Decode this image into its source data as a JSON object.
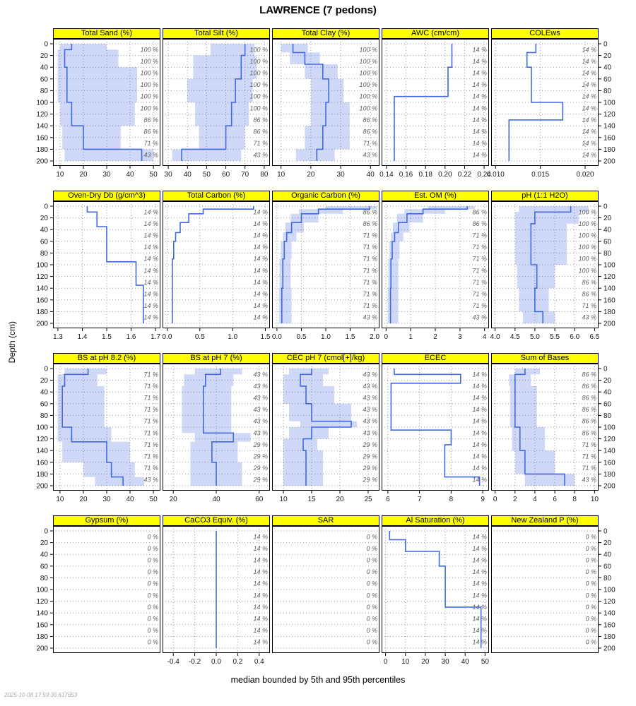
{
  "title": "LAWRENCE (7 pedons)",
  "ylabel": "Depth (cm)",
  "caption": "median bounded by 5th and 95th percentiles",
  "timestamp": "2025-10-08 17:59:30.617653",
  "colors": {
    "strip_bg": "#ffff00",
    "strip_border": "#000000",
    "median_line": "#4169e1",
    "band_fill": "rgba(65,105,225,0.25)",
    "grid": "#9a9a9a",
    "panel_border": "#000000",
    "fraction_text": "#5e5e5e",
    "axis_text": "#1a1a1a",
    "timestamp_text": "#a8a8a8"
  },
  "chart_data": {
    "type": "line",
    "chart_kind": "soil depth-profile lattice; median step line bounded by 5th and 95th percentile band; right-edge labels are contributing fraction of pedons per 20 cm slab",
    "layout": {
      "rows": 4,
      "cols": 5
    },
    "depth_axis": {
      "label": "Depth (cm)",
      "min": 0,
      "max": 200,
      "ticks": [
        0,
        20,
        40,
        60,
        80,
        100,
        120,
        140,
        160,
        180,
        200
      ]
    },
    "fraction_depths": [
      10,
      30,
      50,
      70,
      90,
      110,
      130,
      150,
      170,
      190
    ],
    "panels": [
      {
        "id": "total-sand",
        "title": "Total Sand (%)",
        "xlim": [
          7,
          53
        ],
        "xticks": [
          "10",
          "20",
          "30",
          "40",
          "50"
        ],
        "xtick_values": [
          10,
          20,
          30,
          40,
          50
        ],
        "depths": [
          0,
          10,
          40,
          100,
          140,
          180,
          200
        ],
        "median": [
          15,
          12,
          13,
          15,
          20,
          45
        ],
        "low": [
          10,
          9,
          9,
          10,
          11,
          12
        ],
        "high": [
          30,
          35,
          43,
          42,
          36,
          50
        ],
        "fractions": [
          100,
          100,
          100,
          100,
          100,
          100,
          86,
          86,
          71,
          43
        ]
      },
      {
        "id": "total-silt",
        "title": "Total Silt (%)",
        "xlim": [
          27,
          83
        ],
        "xticks": [
          "30",
          "40",
          "50",
          "60",
          "70",
          "80"
        ],
        "xtick_values": [
          30,
          40,
          50,
          60,
          70,
          80
        ],
        "depths": [
          0,
          20,
          60,
          100,
          140,
          180,
          200
        ],
        "median": [
          70,
          68,
          65,
          63,
          60,
          37
        ],
        "low": [
          52,
          43,
          40,
          44,
          46,
          32
        ],
        "high": [
          75,
          76,
          74,
          72,
          70,
          68
        ],
        "fractions": [
          100,
          100,
          100,
          100,
          100,
          100,
          86,
          86,
          71,
          43
        ]
      },
      {
        "id": "total-clay",
        "title": "Total Clay (%)",
        "xlim": [
          7,
          43
        ],
        "xticks": [
          "10",
          "20",
          "30",
          "40"
        ],
        "xtick_values": [
          10,
          20,
          30,
          40
        ],
        "depths": [
          0,
          15,
          35,
          60,
          100,
          140,
          180,
          200
        ],
        "median": [
          14,
          18,
          24,
          26,
          25,
          24,
          22
        ],
        "low": [
          10,
          13,
          18,
          20,
          20,
          18,
          15
        ],
        "high": [
          19,
          23,
          29,
          31,
          33,
          33,
          28
        ],
        "fractions": [
          100,
          100,
          100,
          100,
          100,
          100,
          86,
          86,
          71,
          43
        ]
      },
      {
        "id": "awc",
        "title": "AWC (cm/cm)",
        "xlim": [
          0.135,
          0.245
        ],
        "xticks": [
          "0.14",
          "0.16",
          "0.18",
          "0.20",
          "0.22",
          "0.24"
        ],
        "xtick_values": [
          0.14,
          0.16,
          0.18,
          0.2,
          0.22,
          0.24
        ],
        "depths": [
          0,
          40,
          90,
          200
        ],
        "median": [
          0.207,
          0.203,
          0.148
        ],
        "low": [],
        "high": [],
        "fractions": [
          14,
          14,
          14,
          14,
          14,
          14,
          14,
          14,
          14,
          14
        ]
      },
      {
        "id": "colews",
        "title": "COLEws",
        "xlim": [
          0.0095,
          0.0215
        ],
        "xticks": [
          "0.010",
          "0.015",
          "0.020"
        ],
        "xtick_values": [
          0.01,
          0.015,
          0.02
        ],
        "depths": [
          0,
          15,
          40,
          100,
          130,
          200
        ],
        "median": [
          0.0145,
          0.0135,
          0.014,
          0.0175,
          0.0115
        ],
        "low": [],
        "high": [],
        "fractions": [
          14,
          14,
          14,
          14,
          14,
          14,
          14,
          14,
          14,
          14
        ]
      },
      {
        "id": "oven-dry-db",
        "title": "Oven-Dry Db (g/cm^3)",
        "xlim": [
          1.28,
          1.72
        ],
        "xticks": [
          "1.3",
          "1.4",
          "1.5",
          "1.6",
          "1.7"
        ],
        "xtick_values": [
          1.3,
          1.4,
          1.5,
          1.6,
          1.7
        ],
        "depths": [
          0,
          10,
          35,
          95,
          135,
          200
        ],
        "median": [
          1.42,
          1.46,
          1.5,
          1.62,
          1.65
        ],
        "low": [],
        "high": [],
        "fractions": [
          14,
          14,
          14,
          14,
          14,
          14,
          14,
          14,
          14,
          14
        ]
      },
      {
        "id": "total-carbon",
        "title": "Total Carbon (%)",
        "xlim": [
          -0.07,
          1.57
        ],
        "xticks": [
          "0.0",
          "0.5",
          "1.0",
          "1.5"
        ],
        "xtick_values": [
          0,
          0.5,
          1,
          1.5
        ],
        "depths": [
          0,
          5,
          13,
          28,
          45,
          60,
          90,
          200
        ],
        "median": [
          1.32,
          0.55,
          0.33,
          0.2,
          0.13,
          0.1,
          0.08
        ],
        "low": [],
        "high": [],
        "fractions": [
          14,
          14,
          14,
          14,
          14,
          14,
          14,
          14,
          14,
          14
        ]
      },
      {
        "id": "organic-carbon",
        "title": "Organic Carbon (%)",
        "xlim": [
          -0.1,
          2.1
        ],
        "xticks": [
          "0.0",
          "0.5",
          "1.0",
          "1.5",
          "2.0"
        ],
        "xtick_values": [
          0,
          0.5,
          1,
          1.5,
          2
        ],
        "depths": [
          0,
          5,
          13,
          28,
          45,
          60,
          90,
          140,
          200
        ],
        "median": [
          1.9,
          0.85,
          0.5,
          0.3,
          0.2,
          0.15,
          0.12,
          0.1
        ],
        "low": [
          1.0,
          0.45,
          0.28,
          0.17,
          0.12,
          0.08,
          0.05,
          0.04
        ],
        "high": [
          2.05,
          1.35,
          0.85,
          0.55,
          0.4,
          0.3,
          0.28,
          0.3
        ],
        "fractions": [
          86,
          86,
          71,
          71,
          71,
          71,
          71,
          71,
          71,
          43
        ]
      },
      {
        "id": "est-om",
        "title": "Est. OM (%)",
        "xlim": [
          -0.18,
          4.18
        ],
        "xticks": [
          "0",
          "1",
          "2",
          "3",
          "4"
        ],
        "xtick_values": [
          0,
          1,
          2,
          3,
          4
        ],
        "depths": [
          0,
          5,
          13,
          28,
          45,
          60,
          90,
          140,
          200
        ],
        "median": [
          3.3,
          1.5,
          0.85,
          0.5,
          0.35,
          0.25,
          0.2,
          0.18
        ],
        "low": [
          1.7,
          0.75,
          0.45,
          0.28,
          0.2,
          0.14,
          0.09,
          0.07
        ],
        "high": [
          3.6,
          2.4,
          1.5,
          0.95,
          0.7,
          0.55,
          0.5,
          0.5
        ],
        "fractions": [
          86,
          86,
          71,
          71,
          71,
          71,
          71,
          71,
          71,
          43
        ]
      },
      {
        "id": "ph",
        "title": "pH (1:1 H2O)",
        "xlim": [
          3.9,
          6.6
        ],
        "xticks": [
          "4.0",
          "4.5",
          "5.0",
          "5.5",
          "6.0",
          "6.5"
        ],
        "xtick_values": [
          4.0,
          4.5,
          5.0,
          5.5,
          6.0,
          6.5
        ],
        "depths": [
          0,
          10,
          30,
          100,
          140,
          180,
          200
        ],
        "median": [
          5.9,
          5.0,
          4.9,
          5.05,
          5.0,
          5.2
        ],
        "low": [
          4.6,
          4.5,
          4.5,
          4.55,
          4.6,
          4.7
        ],
        "high": [
          6.35,
          6.1,
          5.8,
          5.5,
          5.35,
          5.5
        ],
        "fractions": [
          100,
          100,
          100,
          100,
          100,
          100,
          86,
          86,
          71,
          43
        ]
      },
      {
        "id": "bs-ph82",
        "title": "BS at pH 8.2 (%)",
        "xlim": [
          7,
          53
        ],
        "xticks": [
          "10",
          "20",
          "30",
          "40",
          "50"
        ],
        "xtick_values": [
          10,
          20,
          30,
          40,
          50
        ],
        "depths": [
          0,
          10,
          30,
          100,
          125,
          160,
          185,
          200
        ],
        "median": [
          22,
          12,
          11,
          15,
          30,
          32,
          37
        ],
        "low": [
          12,
          9,
          9,
          9,
          11,
          20,
          25
        ],
        "high": [
          30,
          26,
          29,
          32,
          40,
          42,
          46
        ],
        "fractions": [
          71,
          71,
          71,
          71,
          71,
          71,
          71,
          71,
          71,
          43
        ]
      },
      {
        "id": "bs-ph7",
        "title": "BS at pH 7 (%)",
        "xlim": [
          15,
          65
        ],
        "xticks": [
          "20",
          "40",
          "60"
        ],
        "xtick_values": [
          20,
          40,
          60
        ],
        "depths": [
          0,
          10,
          30,
          110,
          125,
          160,
          200
        ],
        "median": [
          42,
          35,
          34,
          48,
          38,
          40
        ],
        "low": [
          30,
          25,
          24,
          30,
          28,
          28
        ],
        "high": [
          52,
          48,
          47,
          56,
          50,
          52
        ],
        "fractions": [
          43,
          43,
          43,
          43,
          43,
          43,
          29,
          29,
          29,
          29
        ]
      },
      {
        "id": "cec-ph7",
        "title": "CEC pH 7 (cmol[+]/kg)",
        "xlim": [
          8,
          27
        ],
        "xticks": [
          "10",
          "15",
          "20",
          "25"
        ],
        "xtick_values": [
          10,
          15,
          20,
          25
        ],
        "depths": [
          0,
          10,
          30,
          60,
          90,
          100,
          120,
          140,
          200
        ],
        "median": [
          15,
          13,
          14,
          15,
          22,
          15,
          13.5,
          14
        ],
        "low": [
          11,
          10,
          10,
          11,
          13,
          11,
          10,
          10
        ],
        "high": [
          18,
          17,
          19,
          22,
          23,
          18,
          16,
          17
        ],
        "fractions": [
          43,
          43,
          43,
          43,
          43,
          43,
          29,
          29,
          29,
          29
        ]
      },
      {
        "id": "ecec",
        "title": "ECEC",
        "xlim": [
          5.8,
          9.2
        ],
        "xticks": [
          "6",
          "7",
          "8",
          "9"
        ],
        "xtick_values": [
          6,
          7,
          8,
          9
        ],
        "depths": [
          0,
          10,
          25,
          105,
          130,
          185,
          200
        ],
        "median": [
          6.2,
          8.3,
          6.1,
          8.0,
          7.8,
          8.9
        ],
        "low": [],
        "high": [],
        "fractions": [
          14,
          14,
          14,
          14,
          14,
          14,
          14,
          14,
          14,
          14
        ]
      },
      {
        "id": "sum-of-bases",
        "title": "Sum of Bases",
        "xlim": [
          -0.4,
          10.4
        ],
        "xticks": [
          "0",
          "2",
          "4",
          "6",
          "8",
          "10"
        ],
        "xtick_values": [
          0,
          2,
          4,
          6,
          8,
          10
        ],
        "depths": [
          0,
          10,
          30,
          100,
          140,
          180,
          200
        ],
        "median": [
          3,
          2,
          2,
          2.5,
          3,
          7
        ],
        "low": [
          2,
          1.4,
          1.5,
          1.7,
          2,
          3
        ],
        "high": [
          4.5,
          3.6,
          4.2,
          5,
          6,
          8
        ],
        "fractions": [
          86,
          86,
          86,
          86,
          86,
          86,
          71,
          71,
          71,
          43
        ]
      },
      {
        "id": "gypsum",
        "title": "Gypsum (%)",
        "xlim": [
          0,
          1
        ],
        "xticks": [],
        "xtick_values": [],
        "depths": [],
        "median": [],
        "low": [],
        "high": [],
        "fractions": [
          0,
          0,
          0,
          0,
          0,
          0,
          0,
          0,
          0,
          0
        ]
      },
      {
        "id": "caco3",
        "title": "CaCO3 Equiv. (%)",
        "xlim": [
          -0.5,
          0.5
        ],
        "xticks": [
          "-0.4",
          "-0.2",
          "0.0",
          "0.2",
          "0.4"
        ],
        "xtick_values": [
          -0.4,
          -0.2,
          0,
          0.2,
          0.4
        ],
        "depths": [
          0,
          200
        ],
        "median": [
          0
        ],
        "low": [],
        "high": [],
        "fractions": [
          14,
          14,
          14,
          14,
          14,
          14,
          14,
          14,
          14,
          14
        ]
      },
      {
        "id": "sar",
        "title": "SAR",
        "xlim": [
          0,
          1
        ],
        "xticks": [],
        "xtick_values": [],
        "depths": [],
        "median": [],
        "low": [],
        "high": [],
        "fractions": [
          0,
          0,
          0,
          0,
          0,
          0,
          0,
          0,
          0,
          0
        ]
      },
      {
        "id": "al-saturation",
        "title": "Al Saturation (%)",
        "xlim": [
          -2,
          52
        ],
        "xticks": [
          "0",
          "10",
          "20",
          "30",
          "40",
          "50"
        ],
        "xtick_values": [
          0,
          10,
          20,
          30,
          40,
          50
        ],
        "depths": [
          0,
          15,
          35,
          60,
          130,
          200
        ],
        "median": [
          2,
          10,
          27,
          30,
          48
        ],
        "low": [],
        "high": [],
        "fractions": [
          14,
          14,
          14,
          14,
          14,
          14,
          14,
          14,
          14,
          14
        ]
      },
      {
        "id": "new-zealand-p",
        "title": "New Zealand P (%)",
        "xlim": [
          0,
          1
        ],
        "xticks": [],
        "xtick_values": [],
        "depths": [],
        "median": [],
        "low": [],
        "high": [],
        "fractions": [
          0,
          0,
          0,
          0,
          0,
          0,
          0,
          0,
          0,
          0
        ]
      }
    ]
  }
}
